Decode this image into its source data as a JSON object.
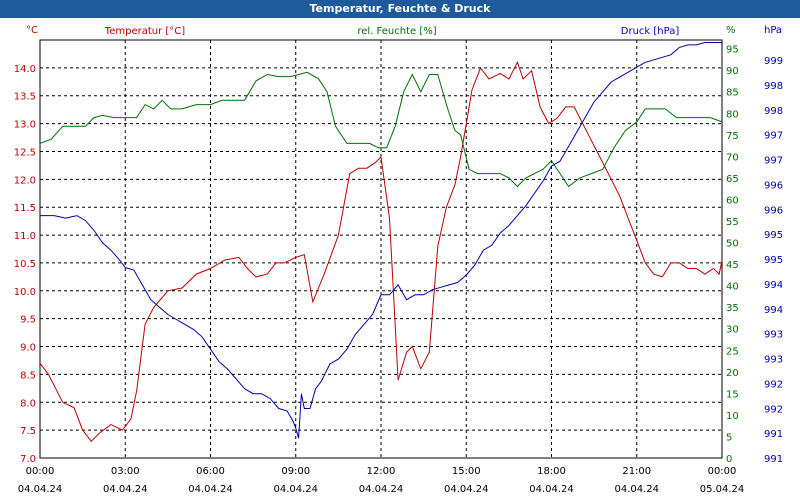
{
  "window": {
    "title": "Temperatur, Feuchte & Druck"
  },
  "colors": {
    "temperature": "#c00000",
    "humidity": "#007000",
    "pressure": "#0000b0",
    "titlebar": "#1f5a9c",
    "grid": "#000000"
  },
  "chart_data": {
    "type": "line",
    "title": "Temperatur, Feuchte & Druck",
    "grid": true,
    "x_ticks": [
      {
        "time": "00:00",
        "date": "04.04.24"
      },
      {
        "time": "03:00",
        "date": "04.04.24"
      },
      {
        "time": "06:00",
        "date": "04.04.24"
      },
      {
        "time": "09:00",
        "date": "04.04.24"
      },
      {
        "time": "12:00",
        "date": "04.04.24"
      },
      {
        "time": "15:00",
        "date": "04.04.24"
      },
      {
        "time": "18:00",
        "date": "04.04.24"
      },
      {
        "time": "21:00",
        "date": "04.04.24"
      },
      {
        "time": "00:00",
        "date": "05.04.24"
      }
    ],
    "x_range_hours": [
      0,
      24
    ],
    "axes": {
      "left": {
        "unit": "°C",
        "label": "Temperatur [°C]",
        "ylim": [
          7.0,
          14.5
        ],
        "ticks": [
          "7.0",
          "7.5",
          "8.0",
          "8.5",
          "9.0",
          "9.5",
          "10.0",
          "10.5",
          "11.0",
          "11.5",
          "12.0",
          "12.5",
          "13.0",
          "13.5",
          "14.0"
        ]
      },
      "right1": {
        "unit": "%",
        "label": "rel. Feuchte [%]",
        "ylim": [
          0,
          97
        ],
        "ticks": [
          "0",
          "5",
          "10",
          "15",
          "20",
          "25",
          "30",
          "35",
          "40",
          "45",
          "50",
          "55",
          "60",
          "65",
          "70",
          "75",
          "80",
          "85",
          "90",
          "95"
        ]
      },
      "right2": {
        "unit": "hPa",
        "label": "Druck [hPa]",
        "ticks": [
          "991",
          "991",
          "992",
          "992",
          "993",
          "993",
          "994",
          "994",
          "995",
          "995",
          "996",
          "996",
          "997",
          "997",
          "998",
          "998",
          "999"
        ]
      }
    },
    "series": [
      {
        "name": "Temperatur [°C]",
        "axis": "left",
        "x": [
          0,
          0.3,
          0.8,
          1.2,
          1.5,
          1.8,
          2.1,
          2.5,
          2.9,
          3.2,
          3.4,
          3.7,
          4.0,
          4.5,
          5.0,
          5.5,
          6.0,
          6.5,
          7.0,
          7.3,
          7.6,
          8.0,
          8.3,
          8.6,
          9.0,
          9.3,
          9.6,
          10.0,
          10.5,
          10.9,
          11.2,
          11.5,
          11.8,
          12.0,
          12.3,
          12.6,
          12.9,
          13.1,
          13.4,
          13.7,
          14.0,
          14.3,
          14.6,
          14.8,
          15.0,
          15.2,
          15.5,
          15.8,
          16.2,
          16.5,
          16.8,
          17.0,
          17.3,
          17.6,
          17.9,
          18.2,
          18.5,
          18.8,
          19.2,
          19.5,
          19.8,
          20.1,
          20.4,
          20.7,
          21.0,
          21.3,
          21.6,
          21.9,
          22.2,
          22.5,
          22.8,
          23.1,
          23.4,
          23.7,
          23.9,
          24.0
        ],
        "y": [
          8.7,
          8.5,
          8.0,
          7.9,
          7.5,
          7.3,
          7.45,
          7.6,
          7.5,
          7.7,
          8.2,
          9.4,
          9.7,
          10.0,
          10.05,
          10.3,
          10.4,
          10.55,
          10.6,
          10.4,
          10.25,
          10.3,
          10.5,
          10.5,
          10.6,
          10.65,
          9.8,
          10.3,
          11.0,
          12.1,
          12.2,
          12.2,
          12.3,
          12.4,
          11.3,
          8.4,
          8.9,
          9.0,
          8.6,
          8.9,
          10.8,
          11.5,
          11.9,
          12.4,
          13.0,
          13.6,
          14.0,
          13.8,
          13.9,
          13.8,
          14.1,
          13.8,
          13.95,
          13.3,
          13.0,
          13.1,
          13.3,
          13.3,
          12.9,
          12.6,
          12.3,
          12.0,
          11.7,
          11.3,
          10.9,
          10.5,
          10.3,
          10.25,
          10.5,
          10.5,
          10.4,
          10.4,
          10.3,
          10.4,
          10.3,
          10.55
        ]
      },
      {
        "name": "rel. Feuchte [%]",
        "axis": "right1",
        "x": [
          0,
          0.4,
          0.8,
          1.2,
          1.6,
          1.9,
          2.2,
          2.6,
          3.0,
          3.4,
          3.7,
          4.0,
          4.3,
          4.6,
          5.0,
          5.5,
          6.0,
          6.4,
          6.8,
          7.2,
          7.6,
          8.0,
          8.4,
          8.8,
          9.1,
          9.4,
          9.8,
          10.1,
          10.4,
          10.8,
          11.2,
          11.6,
          11.9,
          12.2,
          12.5,
          12.8,
          13.1,
          13.4,
          13.7,
          14.0,
          14.3,
          14.6,
          14.8,
          15.1,
          15.4,
          15.8,
          16.2,
          16.5,
          16.8,
          17.1,
          17.4,
          17.7,
          18.0,
          18.3,
          18.6,
          19.0,
          19.4,
          19.8,
          20.2,
          20.6,
          21.0,
          21.3,
          21.6,
          22.0,
          22.4,
          22.8,
          23.2,
          23.6,
          24.0
        ],
        "y": [
          73,
          74,
          77,
          77,
          77,
          79,
          79.5,
          79,
          79,
          79,
          82,
          81,
          83,
          81,
          81,
          82,
          82,
          83,
          83,
          83,
          87.5,
          89,
          88.5,
          88.5,
          89,
          89.5,
          88,
          85,
          77,
          73,
          73,
          73,
          72,
          72,
          77,
          85,
          89,
          85,
          89,
          89,
          82,
          76,
          75,
          67,
          66,
          66,
          66,
          65,
          63,
          65,
          66,
          67,
          69,
          66,
          63,
          65,
          66,
          67,
          72,
          76,
          78,
          81,
          81,
          81,
          79,
          79,
          79,
          79,
          78
        ]
      },
      {
        "name": "Druck [hPa]",
        "axis": "right2",
        "x": [
          0,
          0.5,
          0.9,
          1.3,
          1.6,
          1.9,
          2.2,
          2.5,
          2.8,
          3.0,
          3.3,
          3.6,
          3.9,
          4.2,
          4.5,
          4.8,
          5.1,
          5.4,
          5.7,
          6.0,
          6.3,
          6.6,
          6.9,
          7.2,
          7.5,
          7.8,
          8.1,
          8.4,
          8.7,
          8.9,
          9.0,
          9.1,
          9.2,
          9.3,
          9.5,
          9.7,
          9.9,
          10.2,
          10.5,
          10.8,
          11.1,
          11.4,
          11.7,
          12.0,
          12.3,
          12.6,
          12.9,
          13.2,
          13.5,
          13.8,
          14.1,
          14.4,
          14.7,
          15.0,
          15.3,
          15.6,
          15.9,
          16.2,
          16.5,
          16.8,
          17.1,
          17.4,
          17.7,
          18.0,
          18.3,
          18.6,
          18.9,
          19.2,
          19.5,
          19.8,
          20.1,
          20.4,
          20.7,
          21.0,
          21.3,
          21.6,
          21.9,
          22.2,
          22.5,
          22.8,
          23.1,
          23.4,
          23.7,
          24.0
        ],
        "y": [
          995.8,
          995.8,
          995.75,
          995.8,
          995.7,
          995.5,
          995.25,
          995.1,
          994.9,
          994.75,
          994.7,
          994.4,
          994.1,
          993.95,
          993.8,
          993.7,
          993.6,
          993.5,
          993.35,
          993.1,
          992.85,
          992.7,
          992.5,
          992.3,
          992.2,
          992.2,
          992.1,
          991.9,
          991.85,
          991.65,
          991.5,
          991.3,
          992.2,
          991.9,
          991.9,
          992.3,
          992.45,
          992.8,
          992.9,
          993.1,
          993.4,
          993.6,
          993.8,
          994.2,
          994.2,
          994.4,
          994.1,
          994.2,
          994.2,
          994.3,
          994.35,
          994.4,
          994.45,
          994.6,
          994.8,
          995.1,
          995.2,
          995.45,
          995.6,
          995.8,
          996.0,
          996.25,
          996.5,
          996.8,
          996.9,
          997.2,
          997.5,
          997.8,
          998.1,
          998.3,
          998.5,
          998.6,
          998.7,
          998.8,
          998.9,
          998.95,
          999.0,
          999.05,
          999.2,
          999.25,
          999.25,
          999.3,
          999.3,
          999.3
        ]
      }
    ]
  }
}
